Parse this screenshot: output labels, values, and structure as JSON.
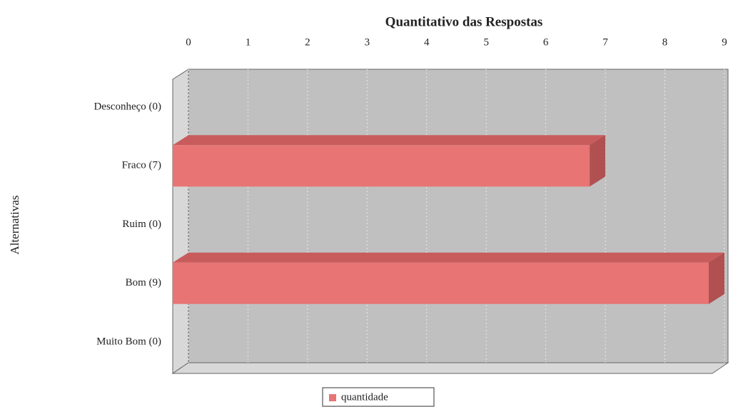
{
  "chart_data": {
    "type": "bar",
    "orientation": "horizontal",
    "title": "Quantitativo das Respostas",
    "y_label": "Alternativas",
    "categories": [
      "Desconheço (0)",
      "Fraco (7)",
      "Ruim (0)",
      "Bom (9)",
      "Muito Bom (0)"
    ],
    "series": [
      {
        "name": "quantidade",
        "color": "#e87474",
        "values": [
          0,
          7,
          0,
          9,
          0
        ]
      }
    ],
    "xlim": [
      0,
      9
    ],
    "xticks": [
      0,
      1,
      2,
      3,
      4,
      5,
      6,
      7,
      8,
      9
    ],
    "grid": true,
    "legend": "bottom"
  }
}
